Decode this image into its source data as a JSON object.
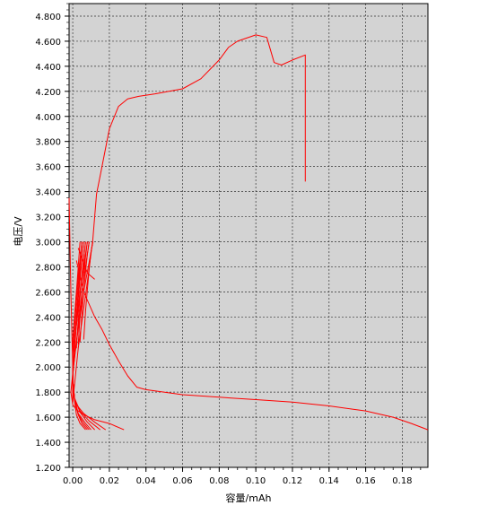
{
  "chart_data": {
    "type": "line",
    "xlabel": "容量/mAh",
    "ylabel": "电压/V",
    "xlim": [
      -0.002,
      0.194
    ],
    "ylim": [
      1.2,
      4.9
    ],
    "x_ticks": [
      "0.00",
      "0.02",
      "0.04",
      "0.06",
      "0.08",
      "0.10",
      "0.12",
      "0.14",
      "0.16",
      "0.18"
    ],
    "y_ticks": [
      "1.200",
      "1.400",
      "1.600",
      "1.800",
      "2.000",
      "2.200",
      "2.400",
      "2.600",
      "2.800",
      "3.000",
      "3.200",
      "3.400",
      "3.600",
      "3.800",
      "4.000",
      "4.200",
      "4.400",
      "4.600",
      "4.800"
    ],
    "grid": true,
    "background": "#d3d3d3",
    "line_color": "#ff0000",
    "series": [
      {
        "x": [
          0,
          0.003,
          0.008,
          0.011,
          0.013,
          0.016,
          0.02,
          0.025,
          0.03,
          0.036,
          0.045,
          0.06,
          0.07,
          0.08,
          0.085,
          0.09,
          0.1,
          0.106,
          0.11,
          0.114,
          0.12,
          0.127,
          0.127
        ],
        "y": [
          1.72,
          2.15,
          2.68,
          3.02,
          3.38,
          3.6,
          3.9,
          4.08,
          4.14,
          4.16,
          4.18,
          4.22,
          4.3,
          4.45,
          4.55,
          4.6,
          4.65,
          4.63,
          4.43,
          4.41,
          4.45,
          4.49,
          3.48
        ]
      },
      {
        "x": [
          0.002,
          0.006,
          0.012,
          0.016,
          0.02,
          0.025,
          0.03,
          0.035,
          0.04,
          0.06,
          0.08,
          0.1,
          0.12,
          0.14,
          0.16,
          0.175,
          0.185,
          0.194
        ],
        "y": [
          2.85,
          2.6,
          2.4,
          2.3,
          2.18,
          2.05,
          1.93,
          1.84,
          1.82,
          1.78,
          1.76,
          1.74,
          1.72,
          1.69,
          1.65,
          1.6,
          1.55,
          1.5
        ]
      },
      {
        "x": [
          0.011,
          0.006,
          0.002,
          0.0,
          -0.001,
          0.0,
          0.002,
          0.006,
          0.012,
          0.02,
          0.028
        ],
        "y": [
          3.0,
          2.6,
          2.2,
          1.95,
          1.8,
          1.7,
          1.66,
          1.62,
          1.58,
          1.55,
          1.5
        ]
      },
      {
        "x": [
          0.009,
          0.005,
          0.002,
          0.0,
          0.0,
          0.002,
          0.006,
          0.012,
          0.018
        ],
        "y": [
          3.0,
          2.6,
          2.2,
          1.95,
          1.8,
          1.7,
          1.63,
          1.56,
          1.5
        ]
      },
      {
        "x": [
          0.008,
          0.004,
          0.001,
          0.0,
          0.001,
          0.004,
          0.009,
          0.015
        ],
        "y": [
          3.0,
          2.6,
          2.2,
          1.9,
          1.75,
          1.65,
          1.57,
          1.5
        ]
      },
      {
        "x": [
          0.007,
          0.004,
          0.001,
          0.0,
          0.001,
          0.004,
          0.008,
          0.012
        ],
        "y": [
          3.0,
          2.6,
          2.2,
          1.9,
          1.75,
          1.64,
          1.56,
          1.5
        ]
      },
      {
        "x": [
          0.006,
          0.003,
          0.001,
          0.0,
          0.001,
          0.003,
          0.007,
          0.01
        ],
        "y": [
          3.0,
          2.6,
          2.2,
          1.9,
          1.75,
          1.63,
          1.55,
          1.5
        ]
      },
      {
        "x": [
          0.005,
          0.003,
          0.001,
          0.0,
          0.001,
          0.003,
          0.006,
          0.009
        ],
        "y": [
          3.0,
          2.6,
          2.2,
          1.9,
          1.74,
          1.62,
          1.55,
          1.5
        ]
      },
      {
        "x": [
          0.005,
          0.002,
          0.0,
          0.0,
          0.001,
          0.003,
          0.005,
          0.008
        ],
        "y": [
          3.0,
          2.6,
          2.2,
          1.9,
          1.74,
          1.62,
          1.55,
          1.5
        ]
      },
      {
        "x": [
          0.004,
          0.002,
          0.0,
          0.0,
          0.001,
          0.002,
          0.004,
          0.007
        ],
        "y": [
          3.0,
          2.6,
          2.2,
          1.9,
          1.73,
          1.62,
          1.55,
          1.5
        ]
      },
      {
        "x": [
          0.006,
          0.007,
          0.008,
          0.009,
          0.01,
          0.011
        ],
        "y": [
          2.22,
          2.45,
          2.62,
          2.78,
          2.92,
          3.0
        ]
      },
      {
        "x": [
          0.004,
          0.005,
          0.006,
          0.007,
          0.008,
          0.009
        ],
        "y": [
          2.2,
          2.42,
          2.6,
          2.76,
          2.9,
          3.0
        ]
      },
      {
        "x": [
          0.003,
          0.004,
          0.005,
          0.006,
          0.007,
          0.008
        ],
        "y": [
          2.18,
          2.4,
          2.58,
          2.74,
          2.88,
          3.0
        ]
      },
      {
        "x": [
          0.002,
          0.003,
          0.004,
          0.005,
          0.006,
          0.007
        ],
        "y": [
          2.15,
          2.38,
          2.56,
          2.72,
          2.86,
          3.0
        ]
      },
      {
        "x": [
          0.001,
          0.002,
          0.003,
          0.004,
          0.005,
          0.006
        ],
        "y": [
          2.12,
          2.35,
          2.54,
          2.7,
          2.85,
          3.0
        ]
      },
      {
        "x": [
          0.0,
          0.001,
          0.002,
          0.003,
          0.004,
          0.005
        ],
        "y": [
          2.1,
          2.32,
          2.52,
          2.68,
          2.84,
          3.0
        ]
      },
      {
        "x": [
          0.003,
          0.008,
          0.012
        ],
        "y": [
          2.95,
          2.75,
          2.7
        ]
      },
      {
        "x": [
          -0.002,
          -0.001,
          0.0,
          0.0
        ],
        "y": [
          3.35,
          2.6,
          2.0,
          1.75
        ]
      }
    ]
  }
}
